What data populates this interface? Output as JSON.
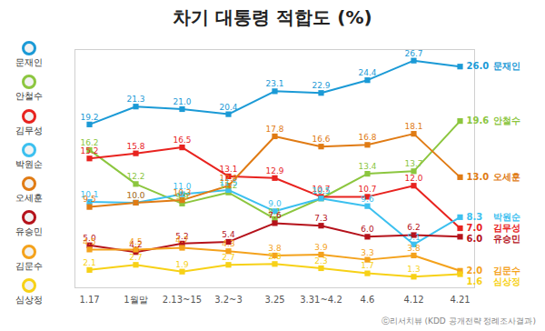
{
  "chart_data": {
    "type": "line",
    "title": "차기 대통령 적합도 (%)",
    "source": "ⓒ리서치뷰 (KDD 공개전략 정례조사결과)",
    "categories": [
      "1.17",
      "1월말",
      "2.13~15",
      "3.2~3",
      "3.25",
      "3.31~4.2",
      "4.6",
      "4.12",
      "4.21"
    ],
    "series": [
      {
        "name": "문재인",
        "color": "#1b9ad6",
        "values": [
          19.2,
          21.3,
          21.0,
          20.4,
          23.1,
          22.9,
          24.4,
          26.7,
          26.0
        ],
        "value_labels": [
          "19.2",
          "21.3",
          "21.0",
          "20.4",
          "23.1",
          "22.9",
          "24.4",
          "26.7",
          "26.0"
        ]
      },
      {
        "name": "안철수",
        "color": "#8cc63f",
        "values": [
          16.2,
          12.2,
          9.9,
          11.2,
          8.1,
          10.5,
          13.4,
          13.7,
          19.6
        ],
        "value_labels": [
          "16.2",
          "12.2",
          "9.9",
          "11.2",
          "8.1",
          "10.5",
          "13.4",
          "13.7",
          "19.6"
        ]
      },
      {
        "name": "김무성",
        "color": "#e8231f",
        "values": [
          15.2,
          15.8,
          16.5,
          13.1,
          12.9,
          10.7,
          10.7,
          12.0,
          7.0
        ],
        "value_labels": [
          "15.2",
          "15.8",
          "16.5",
          "13.1",
          "12.9",
          "10.7",
          "10.7",
          "12.0",
          "7.0"
        ]
      },
      {
        "name": "박원순",
        "color": "#3cc0ef",
        "values": [
          10.1,
          10.0,
          11.0,
          11.5,
          9.0,
          10.5,
          9.6,
          5.1,
          8.3
        ],
        "value_labels": [
          "10.1",
          "10.0",
          "11.0",
          "11.5",
          "9.0",
          "10.5",
          "9.6",
          "5.1",
          "8.3"
        ]
      },
      {
        "name": "오세훈",
        "color": "#e07b14",
        "values": [
          9.5,
          10.0,
          10.3,
          12.0,
          17.8,
          16.6,
          16.8,
          18.1,
          13.0
        ],
        "value_labels": [
          "9.5",
          "10.0",
          "10.3",
          "12.0",
          "17.8",
          "16.6",
          "16.8",
          "18.1",
          "13.0"
        ]
      },
      {
        "name": "유승민",
        "color": "#b5121b",
        "values": [
          5.0,
          4.2,
          5.2,
          5.4,
          7.6,
          7.3,
          6.0,
          6.2,
          6.0
        ],
        "value_labels": [
          "5.0",
          "4.2",
          "5.2",
          "5.4",
          "7.6",
          "7.3",
          "6.0",
          "6.2",
          "6.0"
        ]
      },
      {
        "name": "김문수",
        "color": "#f4a21c",
        "values": [
          4.5,
          4.5,
          4.7,
          4.3,
          3.8,
          3.9,
          3.3,
          3.8,
          2.0
        ],
        "value_labels": [
          "4.5",
          "4.5",
          "4.7",
          "4.3",
          "3.8",
          "3.9",
          "3.3",
          "3.8",
          "2.0"
        ]
      },
      {
        "name": "심상정",
        "color": "#f7d117",
        "values": [
          2.1,
          2.7,
          1.9,
          2.7,
          2.8,
          2.3,
          1.7,
          1.3,
          1.6
        ],
        "value_labels": [
          "2.1",
          "2.7",
          "1.9",
          "2.7",
          "2.8",
          "2.3",
          "1.7",
          "1.3",
          "1.6"
        ]
      }
    ],
    "ylim": [
      0,
      28
    ],
    "yticks": [],
    "grid": false,
    "legend": "left",
    "marker": "square",
    "data_labels": true,
    "tick_labels": "x"
  }
}
